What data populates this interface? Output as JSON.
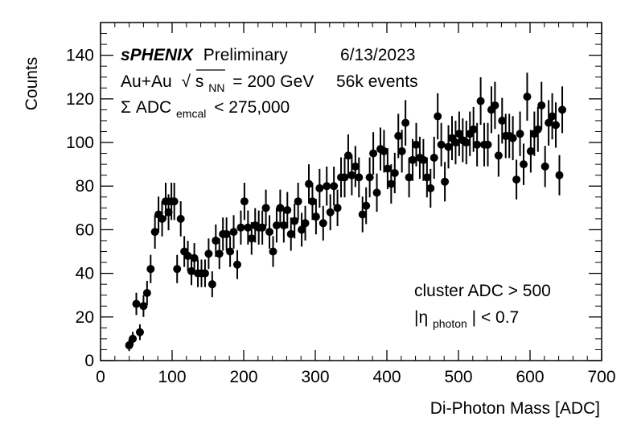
{
  "chart_data": {
    "type": "scatter",
    "style": "points-with-error-bars",
    "xlabel": "Di-Photon Mass [ADC]",
    "ylabel": "Counts",
    "xlim": [
      0,
      700
    ],
    "ylim": [
      0,
      155
    ],
    "x_ticks": [
      0,
      100,
      200,
      300,
      400,
      500,
      600,
      700
    ],
    "y_ticks": [
      0,
      20,
      40,
      60,
      80,
      100,
      120,
      140
    ],
    "grid": false,
    "annotations": {
      "experiment": "sPHENIX",
      "status": "Preliminary",
      "date": "6/13/2023",
      "system": "Au+Au",
      "sqrt_symbol": "√",
      "energy_var_main": "s",
      "energy_var_sub": "NN",
      "energy_value": "= 200 GeV",
      "events": "56k events",
      "adc_prefix": "Σ ADC",
      "adc_sub": "emcal",
      "adc_value": "< 275,000",
      "cut1": "cluster ADC > 500",
      "cut2_prefix": "|η",
      "cut2_sub": "photon",
      "cut2_value": "| < 0.7"
    },
    "series": [
      {
        "marker_color": "#000000",
        "points": [
          [
            40,
            7
          ],
          [
            45,
            10
          ],
          [
            50,
            26
          ],
          [
            55,
            13
          ],
          [
            60,
            25
          ],
          [
            65,
            31
          ],
          [
            70,
            42
          ],
          [
            76,
            59
          ],
          [
            81,
            67
          ],
          [
            86,
            65
          ],
          [
            91,
            73
          ],
          [
            95,
            68
          ],
          [
            99,
            73
          ],
          [
            103,
            73
          ],
          [
            107,
            42
          ],
          [
            112,
            65
          ],
          [
            117,
            50
          ],
          [
            122,
            48
          ],
          [
            127,
            41
          ],
          [
            131,
            47
          ],
          [
            136,
            40
          ],
          [
            141,
            40
          ],
          [
            146,
            40
          ],
          [
            151,
            49
          ],
          [
            156,
            35
          ],
          [
            161,
            55
          ],
          [
            166,
            49
          ],
          [
            171,
            58
          ],
          [
            176,
            58
          ],
          [
            181,
            50
          ],
          [
            186,
            59
          ],
          [
            191,
            44
          ],
          [
            196,
            61
          ],
          [
            201,
            73
          ],
          [
            206,
            61
          ],
          [
            211,
            56
          ],
          [
            216,
            62
          ],
          [
            221,
            61
          ],
          [
            226,
            61
          ],
          [
            231,
            70
          ],
          [
            236,
            59
          ],
          [
            241,
            50
          ],
          [
            246,
            62
          ],
          [
            251,
            70
          ],
          [
            256,
            62
          ],
          [
            261,
            69
          ],
          [
            266,
            58
          ],
          [
            271,
            64
          ],
          [
            276,
            73
          ],
          [
            281,
            60
          ],
          [
            286,
            63
          ],
          [
            291,
            81
          ],
          [
            296,
            73
          ],
          [
            301,
            66
          ],
          [
            306,
            79
          ],
          [
            311,
            63
          ],
          [
            316,
            80
          ],
          [
            321,
            68
          ],
          [
            326,
            80
          ],
          [
            331,
            70
          ],
          [
            336,
            84
          ],
          [
            341,
            84
          ],
          [
            346,
            94
          ],
          [
            351,
            85
          ],
          [
            356,
            89
          ],
          [
            361,
            84
          ],
          [
            366,
            67
          ],
          [
            371,
            71
          ],
          [
            376,
            84
          ],
          [
            381,
            95
          ],
          [
            386,
            77
          ],
          [
            391,
            97
          ],
          [
            396,
            96
          ],
          [
            401,
            88
          ],
          [
            406,
            81
          ],
          [
            411,
            86
          ],
          [
            416,
            103
          ],
          [
            421,
            96
          ],
          [
            426,
            109
          ],
          [
            431,
            84
          ],
          [
            436,
            92
          ],
          [
            441,
            99
          ],
          [
            446,
            93
          ],
          [
            451,
            92
          ],
          [
            456,
            84
          ],
          [
            461,
            79
          ],
          [
            466,
            93
          ],
          [
            471,
            112
          ],
          [
            476,
            99
          ],
          [
            481,
            82
          ],
          [
            486,
            98
          ],
          [
            491,
            102
          ],
          [
            496,
            100
          ],
          [
            501,
            104
          ],
          [
            506,
            101
          ],
          [
            511,
            100
          ],
          [
            516,
            104
          ],
          [
            521,
            106
          ],
          [
            526,
            99
          ],
          [
            531,
            119
          ],
          [
            536,
            99
          ],
          [
            541,
            99
          ],
          [
            546,
            115
          ],
          [
            551,
            117
          ],
          [
            556,
            94
          ],
          [
            561,
            110
          ],
          [
            566,
            103
          ],
          [
            571,
            103
          ],
          [
            576,
            102
          ],
          [
            581,
            83
          ],
          [
            586,
            104
          ],
          [
            591,
            90
          ],
          [
            596,
            121
          ],
          [
            601,
            96
          ],
          [
            606,
            104
          ],
          [
            611,
            106
          ],
          [
            616,
            117
          ],
          [
            621,
            89
          ],
          [
            626,
            109
          ],
          [
            631,
            112
          ],
          [
            636,
            108
          ],
          [
            641,
            85
          ],
          [
            645,
            115
          ]
        ]
      }
    ]
  }
}
